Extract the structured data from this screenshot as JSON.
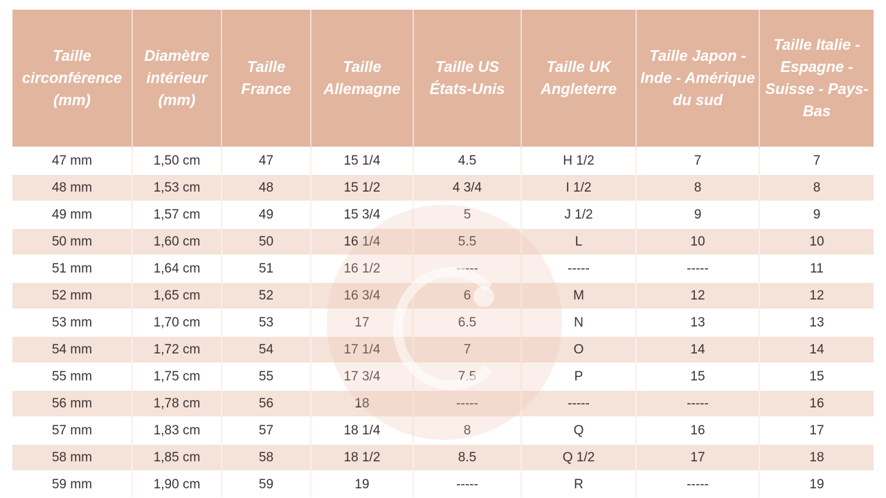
{
  "table": {
    "headers": [
      "Taille circonférence (mm)",
      "Diamètre intérieur (mm)",
      "Taille France",
      "Taille Allemagne",
      "Taille US États-Unis",
      "Taille UK Angleterre",
      "Taille Japon - Inde - Amérique du sud",
      "Taille Italie - Espagne - Suisse - Pays-Bas"
    ],
    "rows": [
      [
        "47 mm",
        "1,50 cm",
        "47",
        "15 1/4",
        "4.5",
        "H 1/2",
        "7",
        "7"
      ],
      [
        "48 mm",
        "1,53 cm",
        "48",
        "15 1/2",
        "4 3/4",
        "I 1/2",
        "8",
        "8"
      ],
      [
        "49 mm",
        "1,57 cm",
        "49",
        "15 3/4",
        "5",
        "J 1/2",
        "9",
        "9"
      ],
      [
        "50 mm",
        "1,60 cm",
        "50",
        "16 1/4",
        "5.5",
        "L",
        "10",
        "10"
      ],
      [
        "51 mm",
        "1,64 cm",
        "51",
        "16 1/2",
        "-----",
        "-----",
        "-----",
        "11"
      ],
      [
        "52 mm",
        "1,65 cm",
        "52",
        "16 3/4",
        "6",
        "M",
        "12",
        "12"
      ],
      [
        "53 mm",
        "1,70 cm",
        "53",
        "17",
        "6.5",
        "N",
        "13",
        "13"
      ],
      [
        "54 mm",
        "1,72 cm",
        "54",
        "17 1/4",
        "7",
        "O",
        "14",
        "14"
      ],
      [
        "55 mm",
        "1,75 cm",
        "55",
        "17 3/4",
        "7.5",
        "P",
        "15",
        "15"
      ],
      [
        "56 mm",
        "1,78 cm",
        "56",
        "18",
        "-----",
        "-----",
        "-----",
        "16"
      ],
      [
        "57 mm",
        "1,83 cm",
        "57",
        "18 1/4",
        "8",
        "Q",
        "16",
        "17"
      ],
      [
        "58 mm",
        "1,85 cm",
        "58",
        "18 1/2",
        "8.5",
        "Q 1/2",
        "17",
        "18"
      ],
      [
        "59 mm",
        "1,90 cm",
        "59",
        "19",
        "-----",
        "R",
        "-----",
        "19"
      ]
    ]
  },
  "colors": {
    "header": "#e2b59f",
    "alt_row": "#f5e2d8",
    "header_text": "#ffffff"
  },
  "watermark": {
    "icon": "g-logo-watermark"
  }
}
